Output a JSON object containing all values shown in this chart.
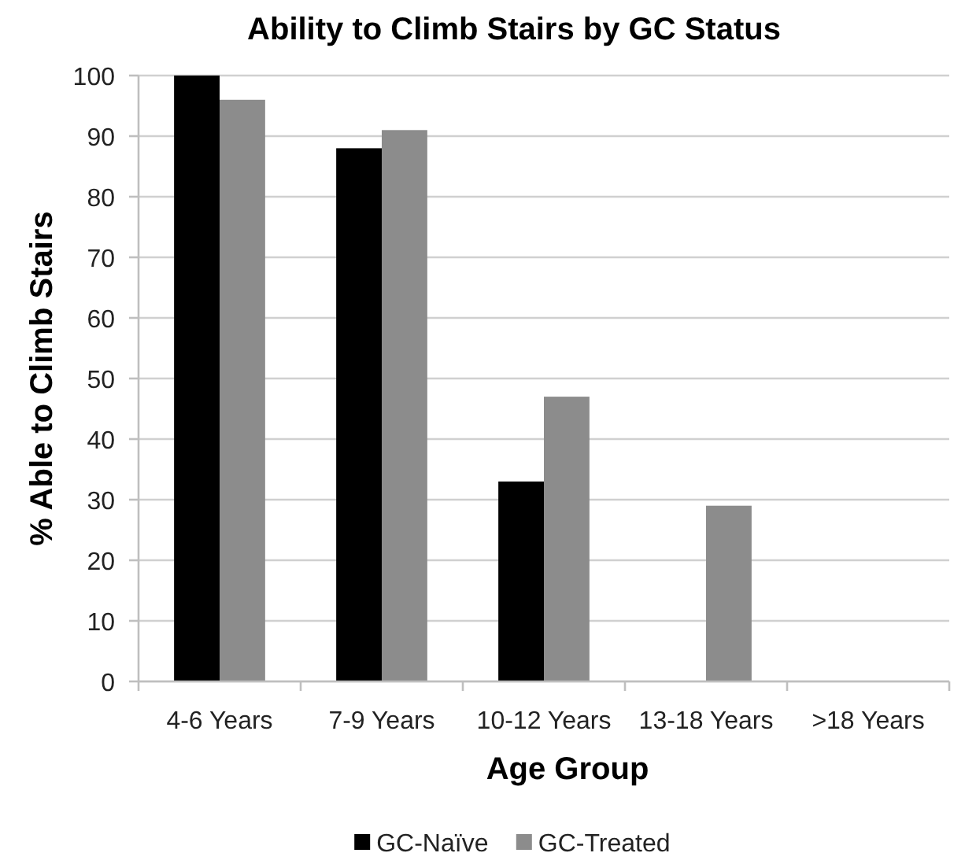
{
  "chart_data": {
    "type": "bar",
    "title": "Ability to Climb Stairs by GC Status",
    "xlabel": "Age Group",
    "ylabel": "% Able to Climb Stairs",
    "categories": [
      "4-6 Years",
      "7-9 Years",
      "10-12 Years",
      "13-18 Years",
      ">18 Years"
    ],
    "series": [
      {
        "name": "GC-Naïve",
        "color": "#000000",
        "values": [
          100,
          88,
          33,
          null,
          null
        ]
      },
      {
        "name": "GC-Treated",
        "color": "#8c8c8c",
        "values": [
          96,
          91,
          47,
          29,
          null
        ]
      }
    ],
    "ylim": [
      0,
      100
    ],
    "yticks": [
      0,
      10,
      20,
      30,
      40,
      50,
      60,
      70,
      80,
      90,
      100
    ],
    "grid": "y",
    "legend": "bottom"
  }
}
